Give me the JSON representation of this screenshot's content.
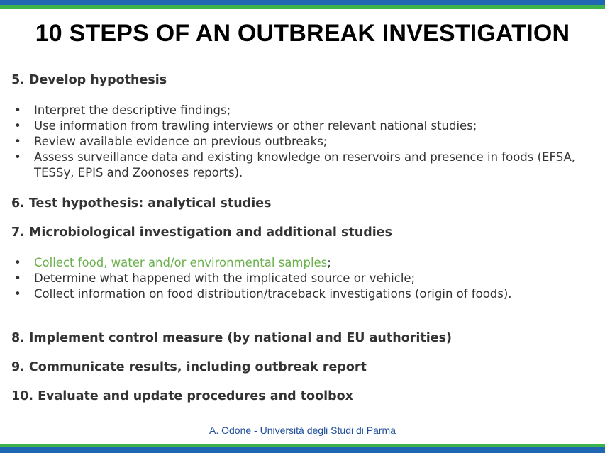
{
  "title": "10 STEPS OF AN OUTBREAK INVESTIGATION",
  "step5": {
    "heading": "5. Develop hypothesis",
    "bullets": [
      "Interpret the descriptive findings;",
      "Use information from trawling interviews or other relevant national studies;",
      "Review available evidence on previous outbreaks;",
      "Assess surveillance data and existing knowledge on reservoirs and presence in foods (EFSA,",
      "TESSy, EPIS and Zoonoses reports)."
    ]
  },
  "step6": {
    "heading": "6. Test hypothesis: analytical studies"
  },
  "step7": {
    "heading": "7. Microbiological investigation and additional studies",
    "bullets": [
      "Collect food, water and/or environmental samples",
      ";",
      "Determine what happened with the implicated source or vehicle;",
      "Collect information on food distribution/traceback investigations (origin of foods)."
    ]
  },
  "step8": {
    "heading": "8. Implement control measure (by national and EU authorities)"
  },
  "step9": {
    "heading": "9. Communicate results, including outbreak report"
  },
  "step10": {
    "heading": "10. Evaluate and update procedures and toolbox"
  },
  "footer": "A. Odone - Università degli Studi di Parma",
  "colors": {
    "brand_blue": "#1f66b3",
    "brand_green": "#3cb44b",
    "highlight_green": "#6ab04c",
    "footer_blue": "#1f4e9a"
  }
}
